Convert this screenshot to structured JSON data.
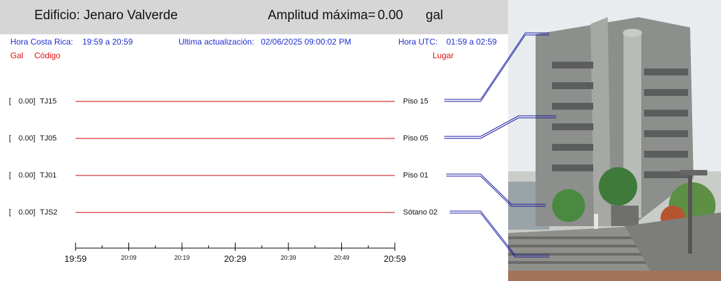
{
  "header": {
    "building_label": "Edificio: Jenaro Valverde",
    "amplitude_label": "Amplitud máxima=",
    "amplitude_value": "0.00",
    "amplitude_unit": "gal"
  },
  "info": {
    "cr_time_label": "Hora Costa Rica:",
    "cr_time_value": "19:59 a 20:59",
    "update_label": "Ultima actualización:",
    "update_value": "02/06/2025 09:00:02 PM",
    "utc_label": "Hora UTC:",
    "utc_value": "01:59 a 02:59"
  },
  "columns": {
    "gal": "Gal",
    "code": "Código",
    "place": "Lugar"
  },
  "channels": [
    {
      "bracket": "[",
      "value": "0.00]",
      "code": "TJ15",
      "place": "Piso 15"
    },
    {
      "bracket": "[",
      "value": "0.00]",
      "code": "TJ05",
      "place": "Piso 05"
    },
    {
      "bracket": "[",
      "value": "0.00]",
      "code": "TJ01",
      "place": "Piso 01"
    },
    {
      "bracket": "[",
      "value": "0.00]",
      "code": "TJS2",
      "place": "Sótano 02"
    }
  ],
  "chart_data": {
    "type": "line",
    "x": [
      "19:59",
      "20:59"
    ],
    "series": [
      {
        "name": "TJ15",
        "values": [
          0.0,
          0.0
        ]
      },
      {
        "name": "TJ05",
        "values": [
          0.0,
          0.0
        ]
      },
      {
        "name": "TJ01",
        "values": [
          0.0,
          0.0
        ]
      },
      {
        "name": "TJS2",
        "values": [
          0.0,
          0.0
        ]
      }
    ],
    "xticks_major": [
      "19:59",
      "20:29",
      "20:59"
    ],
    "xticks_minor": [
      "20:09",
      "20:19",
      "20:39",
      "20:49"
    ],
    "line_color": "#cc0000"
  },
  "colors": {
    "header_bg": "#d6d6d6",
    "info_text": "#1f2fd1",
    "column_text": "#e01010",
    "trace": "#cc0000",
    "connector": "#1a1aa0"
  }
}
